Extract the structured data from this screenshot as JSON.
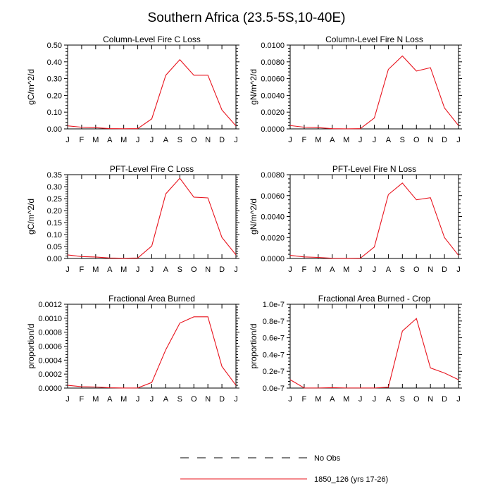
{
  "title": "Southern Africa (23.5-5S,10-40E)",
  "colors": {
    "model": "#e8141e",
    "obs": "#000000",
    "axis": "#000000"
  },
  "legend": {
    "obs_label": "No Obs",
    "model_label": "1850_126 (yrs 17-26)"
  },
  "chart_data": [
    {
      "type": "line",
      "title": "Column-Level Fire C Loss",
      "ylabel": "gC/m^2/d",
      "categories": [
        "J",
        "F",
        "M",
        "A",
        "M",
        "J",
        "J",
        "A",
        "S",
        "O",
        "N",
        "D",
        "J"
      ],
      "ylim": [
        0,
        0.5
      ],
      "yticks": [
        "0.00",
        "0.10",
        "0.20",
        "0.30",
        "0.40",
        "0.50"
      ],
      "series": [
        {
          "name": "1850_126 (yrs 17-26)",
          "values": [
            0.018,
            0.01,
            0.007,
            0.002,
            0.001,
            0.002,
            0.06,
            0.32,
            0.413,
            0.32,
            0.32,
            0.113,
            0.018
          ]
        }
      ]
    },
    {
      "type": "line",
      "title": "Column-Level Fire N Loss",
      "ylabel": "gN/m^2/d",
      "categories": [
        "J",
        "F",
        "M",
        "A",
        "M",
        "J",
        "J",
        "A",
        "S",
        "O",
        "N",
        "D",
        "J"
      ],
      "ylim": [
        0,
        0.01
      ],
      "yticks": [
        "0.0000",
        "0.0020",
        "0.0040",
        "0.0060",
        "0.0080",
        "0.0100"
      ],
      "series": [
        {
          "name": "1850_126 (yrs 17-26)",
          "values": [
            0.0004,
            0.0002,
            0.00015,
            3e-05,
            1e-05,
            3e-05,
            0.0013,
            0.0071,
            0.0087,
            0.0069,
            0.0073,
            0.0025,
            0.0004
          ]
        }
      ]
    },
    {
      "type": "line",
      "title": "PFT-Level Fire C Loss",
      "ylabel": "gC/m^2/d",
      "categories": [
        "J",
        "F",
        "M",
        "A",
        "M",
        "J",
        "J",
        "A",
        "S",
        "O",
        "N",
        "D",
        "J"
      ],
      "ylim": [
        0,
        0.35
      ],
      "yticks": [
        "0.00",
        "0.05",
        "0.10",
        "0.15",
        "0.20",
        "0.25",
        "0.30",
        "0.35"
      ],
      "series": [
        {
          "name": "1850_126 (yrs 17-26)",
          "values": [
            0.015,
            0.008,
            0.006,
            0.002,
            0.001,
            0.002,
            0.052,
            0.27,
            0.335,
            0.256,
            0.253,
            0.088,
            0.015
          ]
        }
      ]
    },
    {
      "type": "line",
      "title": "PFT-Level Fire N Loss",
      "ylabel": "gN/m^2/d",
      "categories": [
        "J",
        "F",
        "M",
        "A",
        "M",
        "J",
        "J",
        "A",
        "S",
        "O",
        "N",
        "D",
        "J"
      ],
      "ylim": [
        0,
        0.008
      ],
      "yticks": [
        "0.0000",
        "0.0020",
        "0.0040",
        "0.0060",
        "0.0080"
      ],
      "series": [
        {
          "name": "1850_126 (yrs 17-26)",
          "values": [
            0.0003,
            0.00015,
            0.0001,
            2e-05,
            1e-05,
            2e-05,
            0.0011,
            0.0061,
            0.0072,
            0.0056,
            0.0058,
            0.002,
            0.0003
          ]
        }
      ]
    },
    {
      "type": "line",
      "title": "Fractional Area Burned",
      "ylabel": "proportion/d",
      "categories": [
        "J",
        "F",
        "M",
        "A",
        "M",
        "J",
        "J",
        "A",
        "S",
        "O",
        "N",
        "D",
        "J"
      ],
      "ylim": [
        0,
        0.0012
      ],
      "yticks": [
        "0.0000",
        "0.0002",
        "0.0004",
        "0.0006",
        "0.0008",
        "0.0010",
        "0.0012"
      ],
      "series": [
        {
          "name": "1850_126 (yrs 17-26)",
          "values": [
            4e-05,
            2e-05,
            1.5e-05,
            4e-06,
            1e-06,
            2e-06,
            8e-05,
            0.00055,
            0.00093,
            0.00102,
            0.00102,
            0.00031,
            4e-05
          ]
        }
      ]
    },
    {
      "type": "line",
      "title": "Fractional Area Burned - Crop",
      "ylabel": "proportion/d",
      "categories": [
        "J",
        "F",
        "M",
        "A",
        "M",
        "J",
        "J",
        "A",
        "S",
        "O",
        "N",
        "D",
        "J"
      ],
      "ylim": [
        0,
        1e-07
      ],
      "yticks": [
        "0.0e-7",
        "0.2e-7",
        "0.4e-7",
        "0.6e-7",
        "0.8e-7",
        "1.0e-7"
      ],
      "series": [
        {
          "name": "1850_126 (yrs 17-26)",
          "values": [
            1e-08,
            1e-10,
            1e-10,
            5e-10,
            1e-10,
            1e-10,
            1e-10,
            1e-09,
            6.8e-08,
            8.3e-08,
            2.4e-08,
            1.8e-08,
            1e-08
          ]
        }
      ]
    }
  ]
}
